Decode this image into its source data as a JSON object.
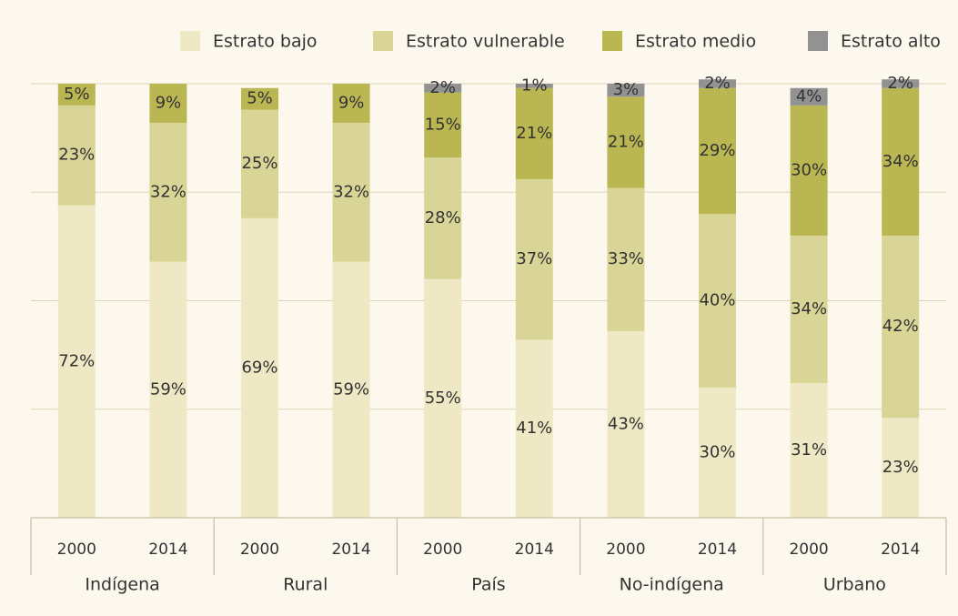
{
  "chart_data": {
    "type": "stacked_bar",
    "categories": [
      "2000",
      "2014",
      "2000",
      "2014",
      "2000",
      "2014",
      "2000",
      "2014",
      "2000",
      "2014"
    ],
    "groups": [
      "Indígena",
      "Rural",
      "País",
      "No-indígena",
      "Urbano"
    ],
    "series": [
      {
        "name": "Estrato bajo",
        "color": "#efe8c4",
        "values": [
          72,
          59,
          69,
          59,
          55,
          41,
          43,
          30,
          31,
          23
        ],
        "value_labels": [
          "72%",
          "59%",
          "69%",
          "59%",
          "55%",
          "41%",
          "43%",
          "30%",
          "31%",
          "23%"
        ]
      },
      {
        "name": "Estrato vulnerable",
        "color": "#d9d596",
        "values": [
          23,
          32,
          25,
          32,
          28,
          37,
          33,
          40,
          34,
          42
        ],
        "value_labels": [
          "23%",
          "32%",
          "25%",
          "32%",
          "28%",
          "37%",
          "33%",
          "40%",
          "34%",
          "42%"
        ]
      },
      {
        "name": "Estrato medio",
        "color": "#bab652",
        "values": [
          5,
          9,
          5,
          9,
          15,
          21,
          21,
          29,
          30,
          34
        ],
        "value_labels": [
          "5%",
          "9%",
          "5%",
          "9%",
          "15%",
          "21%",
          "21%",
          "29%",
          "30%",
          "34%"
        ]
      },
      {
        "name": "Estrato alto",
        "color": "#929292",
        "values": [
          0,
          0,
          0,
          0,
          2,
          1,
          3,
          2,
          4,
          2
        ],
        "value_labels": [
          null,
          null,
          null,
          null,
          "2%",
          "1%",
          "3%",
          "2%",
          "4%",
          "2%"
        ]
      }
    ],
    "ylim": [
      0,
      100
    ],
    "yticks": [
      0,
      25,
      50,
      75,
      100
    ],
    "grid": true,
    "legend": "top"
  }
}
